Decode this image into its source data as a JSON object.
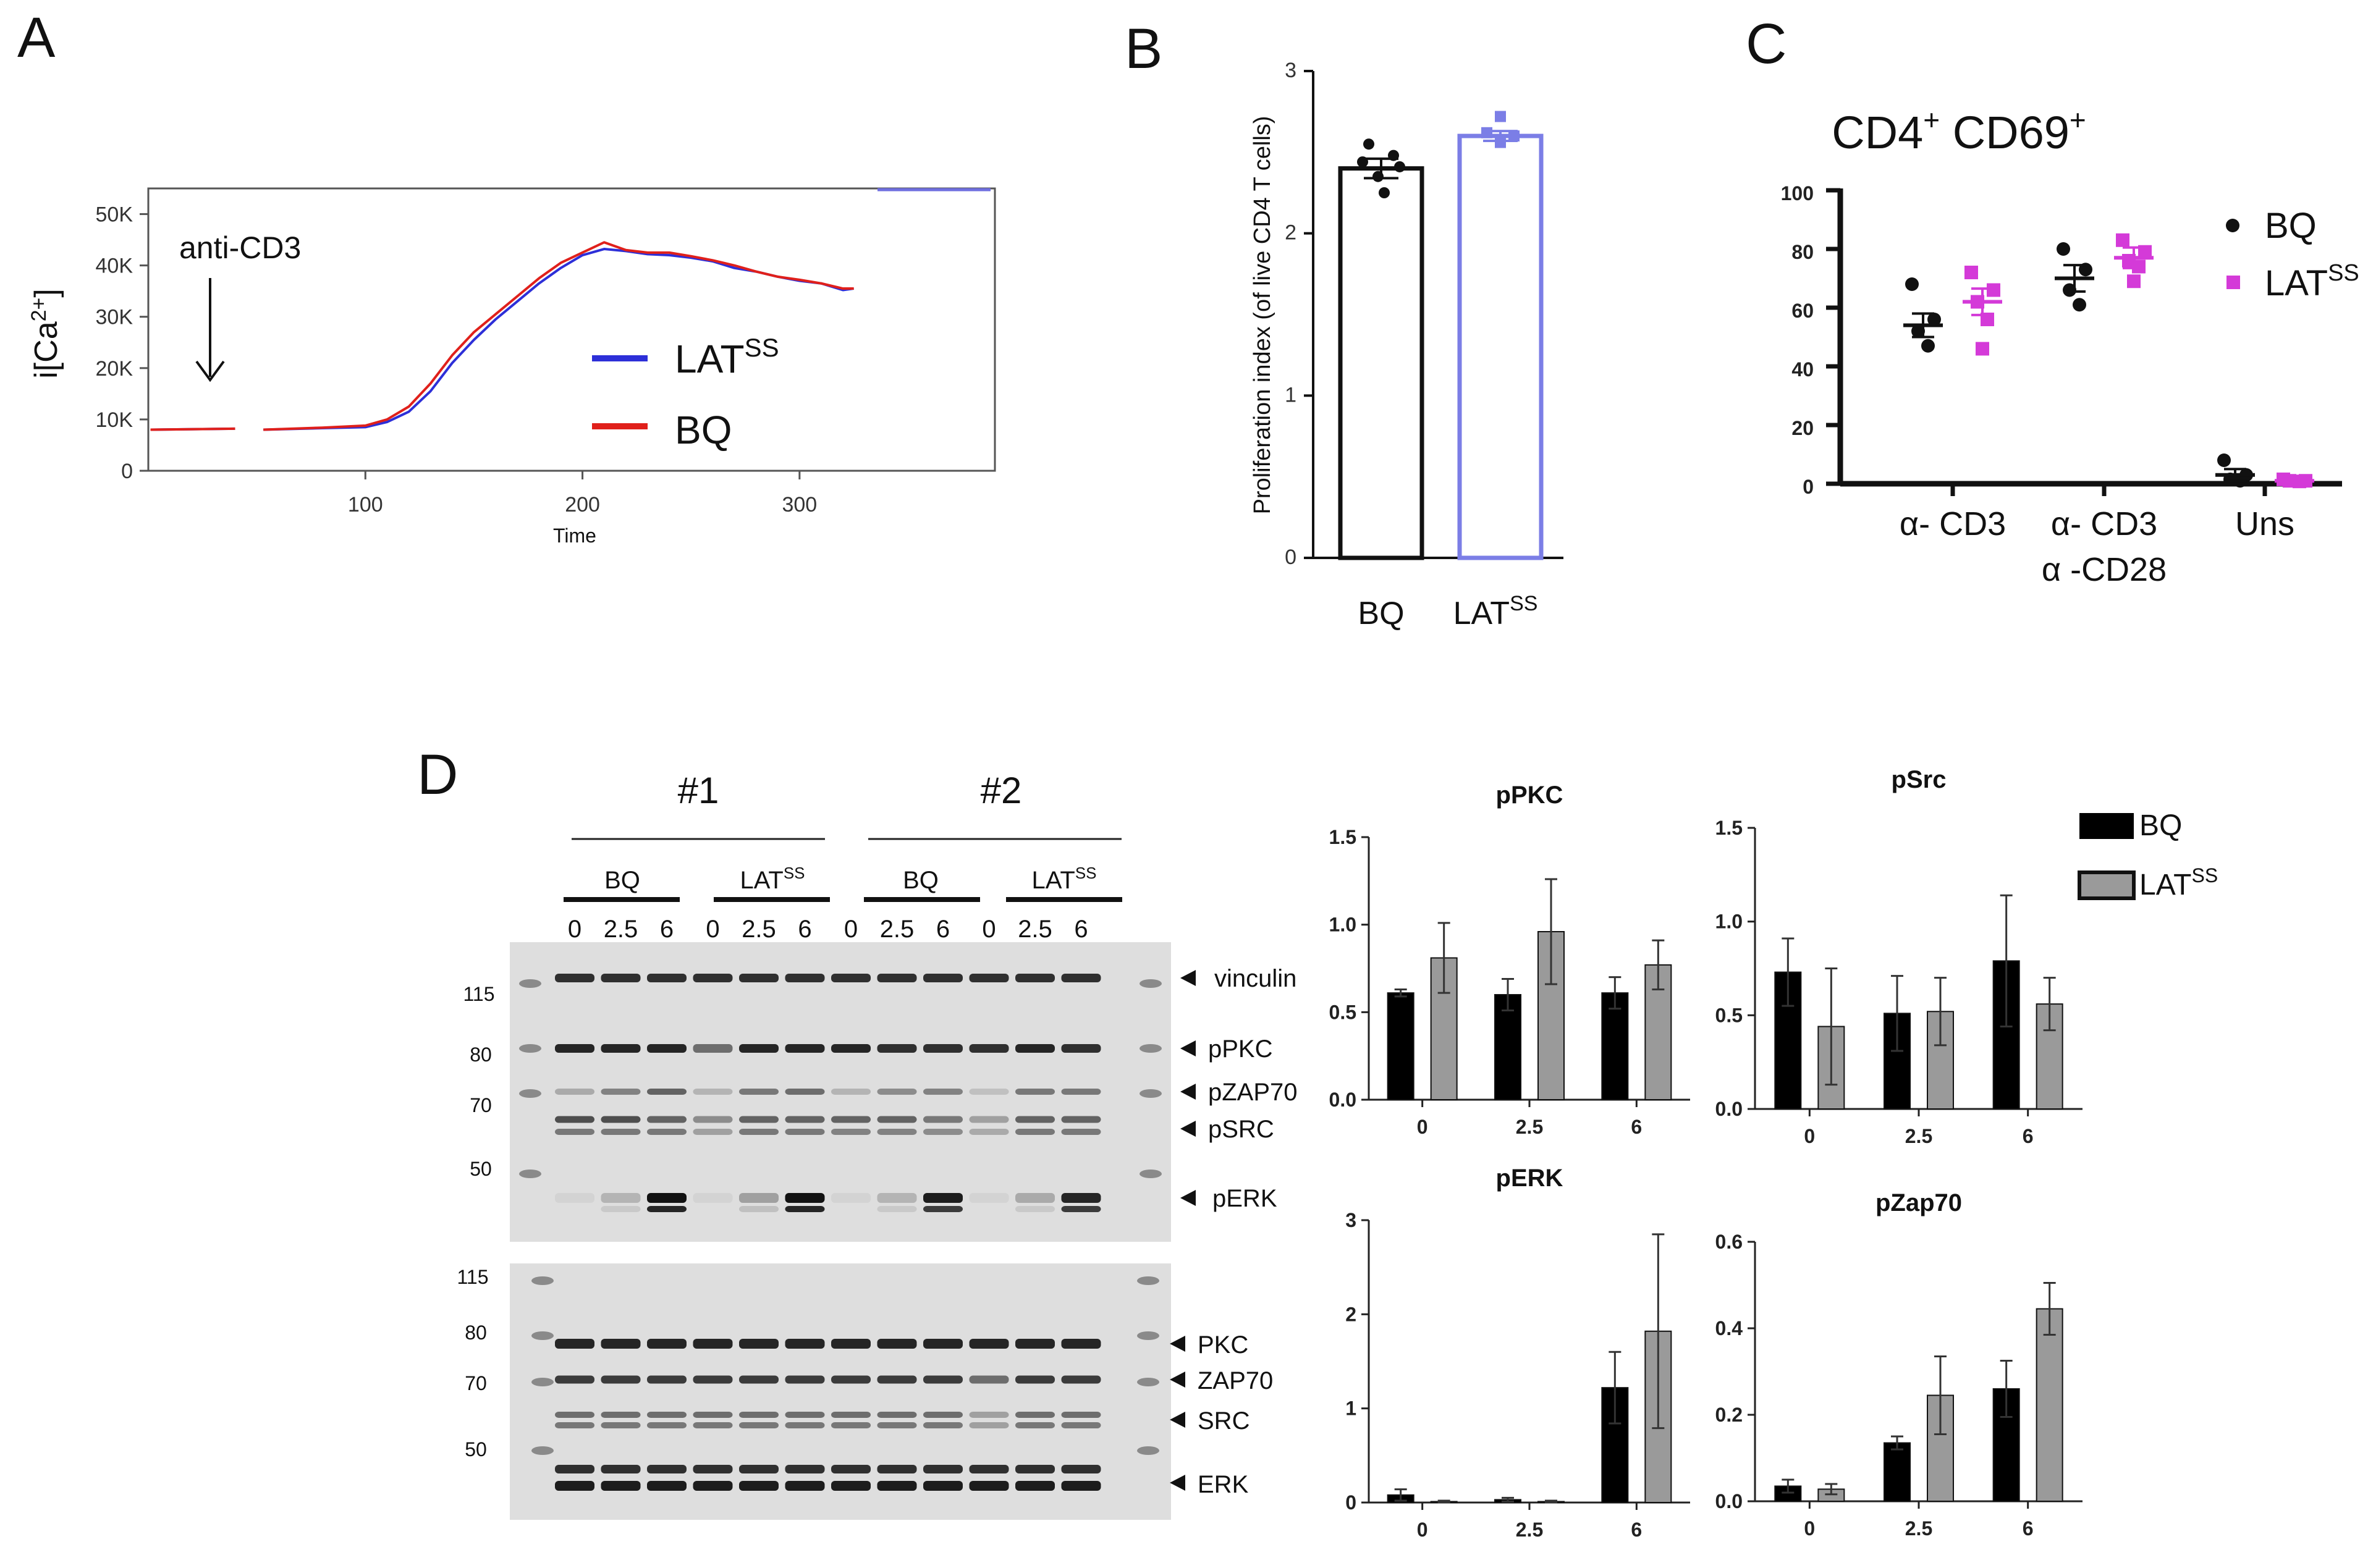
{
  "panels": {
    "a": "A",
    "b": "B",
    "c": "C",
    "d": "D"
  },
  "colors": {
    "bq": "#e0201b",
    "lat": "#2d2fd8",
    "lat_b": "#7b7ee6",
    "lat_c": "#d43ad8",
    "black": "#000000",
    "gray": "#9a9a9a"
  },
  "chart_data": [
    {
      "id": "A",
      "type": "line",
      "title": "",
      "xlabel": "Time",
      "ylabel": "i[Ca2+]",
      "ylabel_base": "i[Ca",
      "ylabel_sup": "2+",
      "ylabel_end": "]",
      "xlim": [
        0,
        390
      ],
      "ylim": [
        0,
        55000
      ],
      "xticks": [
        {
          "v": 100,
          "label": "100"
        },
        {
          "v": 200,
          "label": "200"
        },
        {
          "v": 300,
          "label": "300"
        }
      ],
      "yticks": [
        {
          "v": 0,
          "label": "0"
        },
        {
          "v": 10000,
          "label": "10K"
        },
        {
          "v": 20000,
          "label": "20K"
        },
        {
          "v": 30000,
          "label": "30K"
        },
        {
          "v": 40000,
          "label": "40K"
        },
        {
          "v": 50000,
          "label": "50K"
        }
      ],
      "annotation": {
        "text": "anti-CD3",
        "x": 27
      },
      "legend": [
        {
          "name": "LAT",
          "sup": "SS",
          "color": "#2d2fd8"
        },
        {
          "name": "BQ",
          "sup": "",
          "color": "#e0201b"
        }
      ],
      "series": [
        {
          "name": "LATSS",
          "color": "#2d2fd8",
          "x": [
            1,
            40,
            53,
            80,
            100,
            110,
            120,
            130,
            140,
            150,
            160,
            170,
            180,
            190,
            200,
            210,
            220,
            230,
            240,
            250,
            260,
            270,
            280,
            290,
            300,
            310,
            320,
            325
          ],
          "y": [
            8000,
            8200,
            8000,
            8300,
            8500,
            9500,
            11500,
            15500,
            21000,
            25500,
            29500,
            33000,
            36500,
            39500,
            42000,
            43200,
            42800,
            42200,
            42000,
            41500,
            40800,
            39500,
            38800,
            37800,
            37000,
            36500,
            35200,
            35500
          ]
        },
        {
          "name": "BQ",
          "color": "#e0201b",
          "x": [
            1,
            40,
            53,
            80,
            100,
            110,
            120,
            130,
            140,
            150,
            160,
            170,
            180,
            190,
            200,
            210,
            220,
            230,
            240,
            250,
            260,
            270,
            280,
            290,
            300,
            310,
            320,
            325
          ],
          "y": [
            8000,
            8200,
            8000,
            8400,
            8800,
            10000,
            12500,
            17000,
            22500,
            27000,
            30500,
            34000,
            37500,
            40500,
            42500,
            44500,
            43000,
            42500,
            42500,
            41800,
            41000,
            40000,
            38800,
            37800,
            37200,
            36500,
            35500,
            35500
          ]
        }
      ]
    },
    {
      "id": "B",
      "type": "bar",
      "title": "",
      "ylabel": "Proliferation index (of live CD4 T cells)",
      "ylim": [
        0,
        3
      ],
      "yticks": [
        {
          "v": 0,
          "label": "0"
        },
        {
          "v": 1,
          "label": "1"
        },
        {
          "v": 2,
          "label": "2"
        },
        {
          "v": 3,
          "label": "3"
        }
      ],
      "categories": [
        {
          "name": "BQ",
          "sup": ""
        },
        {
          "name": "LAT",
          "sup": "SS"
        }
      ],
      "values": [
        2.4,
        2.6
      ],
      "sem": [
        0.06,
        0.03
      ],
      "points": [
        [
          2.55,
          2.48,
          2.44,
          2.41,
          2.35,
          2.25
        ],
        [
          2.72,
          2.62,
          2.6,
          2.56
        ]
      ]
    },
    {
      "id": "C",
      "type": "scatter",
      "title": "CD4",
      "title_sup1": "+",
      "title_mid": " CD69",
      "title_sup2": "+",
      "ylim": [
        0,
        100
      ],
      "yticks": [
        {
          "v": 0,
          "label": "0"
        },
        {
          "v": 20,
          "label": "20"
        },
        {
          "v": 40,
          "label": "40"
        },
        {
          "v": 60,
          "label": "60"
        },
        {
          "v": 80,
          "label": "80"
        },
        {
          "v": 100,
          "label": "100"
        }
      ],
      "groups": [
        {
          "line1": "α- CD3",
          "line2": ""
        },
        {
          "line1": "α- CD3",
          "line2": "α -CD28"
        },
        {
          "line1": "Uns",
          "line2": ""
        }
      ],
      "legend": [
        {
          "name": "BQ",
          "sup": "",
          "color": "#111111",
          "marker": "circle"
        },
        {
          "name": "LAT",
          "sup": "SS",
          "color": "#d43ad8",
          "marker": "square"
        }
      ],
      "series": [
        {
          "name": "BQ",
          "marker": "circle",
          "color": "#111111",
          "means": [
            54,
            70,
            3
          ],
          "sem": [
            4,
            4.5,
            2
          ],
          "points": [
            [
              68,
              56,
              52,
              47
            ],
            [
              80,
              73,
              66,
              61
            ],
            [
              8,
              3,
              1.5,
              1
            ]
          ]
        },
        {
          "name": "LATSS",
          "marker": "square",
          "color": "#d43ad8",
          "means": [
            62,
            77,
            1
          ],
          "sem": [
            4.5,
            3.5,
            0.3
          ],
          "points": [
            [
              72,
              66,
              62,
              56,
              46
            ],
            [
              83,
              79,
              76,
              74,
              69
            ],
            [
              1.5,
              1,
              1,
              0.8
            ]
          ]
        }
      ]
    },
    {
      "id": "D-pPKC",
      "type": "bar",
      "title": "pPKC",
      "categories": [
        "0",
        "2.5",
        "6"
      ],
      "ylim": [
        0,
        1.5
      ],
      "yticks": [
        {
          "v": 0,
          "label": "0.0"
        },
        {
          "v": 0.5,
          "label": "0.5"
        },
        {
          "v": 1.0,
          "label": "1.0"
        },
        {
          "v": 1.5,
          "label": "1.5"
        }
      ],
      "series": [
        {
          "name": "BQ",
          "values": [
            0.61,
            0.6,
            0.61
          ],
          "err": [
            0.02,
            0.09,
            0.09
          ]
        },
        {
          "name": "LATSS",
          "values": [
            0.81,
            0.96,
            0.77
          ],
          "err": [
            0.2,
            0.3,
            0.14
          ]
        }
      ]
    },
    {
      "id": "D-pSrc",
      "type": "bar",
      "title": "pSrc",
      "categories": [
        "0",
        "2.5",
        "6"
      ],
      "ylim": [
        0,
        1.5
      ],
      "yticks": [
        {
          "v": 0,
          "label": "0.0"
        },
        {
          "v": 0.5,
          "label": "0.5"
        },
        {
          "v": 1.0,
          "label": "1.0"
        },
        {
          "v": 1.5,
          "label": "1.5"
        }
      ],
      "series": [
        {
          "name": "BQ",
          "values": [
            0.73,
            0.51,
            0.79
          ],
          "err": [
            0.18,
            0.2,
            0.35
          ]
        },
        {
          "name": "LATSS",
          "values": [
            0.44,
            0.52,
            0.56
          ],
          "err": [
            0.31,
            0.18,
            0.14
          ]
        }
      ]
    },
    {
      "id": "D-pERK",
      "type": "bar",
      "title": "pERK",
      "categories": [
        "0",
        "2.5",
        "6"
      ],
      "ylim": [
        0,
        3
      ],
      "yticks": [
        {
          "v": 0,
          "label": "0"
        },
        {
          "v": 1,
          "label": "1"
        },
        {
          "v": 2,
          "label": "2"
        },
        {
          "v": 3,
          "label": "3"
        }
      ],
      "series": [
        {
          "name": "BQ",
          "values": [
            0.08,
            0.03,
            1.22
          ],
          "err": [
            0.06,
            0.02,
            0.38
          ]
        },
        {
          "name": "LATSS",
          "values": [
            0.01,
            0.01,
            1.82
          ],
          "err": [
            0.01,
            0.01,
            1.03
          ]
        }
      ]
    },
    {
      "id": "D-pZap70",
      "type": "bar",
      "title": "pZap70",
      "categories": [
        "0",
        "2.5",
        "6"
      ],
      "ylim": [
        0,
        0.6
      ],
      "yticks": [
        {
          "v": 0,
          "label": "0.0"
        },
        {
          "v": 0.2,
          "label": "0.2"
        },
        {
          "v": 0.4,
          "label": "0.4"
        },
        {
          "v": 0.6,
          "label": "0.6"
        }
      ],
      "series": [
        {
          "name": "BQ",
          "values": [
            0.035,
            0.135,
            0.26
          ],
          "err": [
            0.015,
            0.015,
            0.065
          ]
        },
        {
          "name": "LATSS",
          "values": [
            0.028,
            0.245,
            0.445
          ],
          "err": [
            0.012,
            0.09,
            0.06
          ]
        }
      ]
    }
  ],
  "legend_d": [
    {
      "name": "BQ",
      "sup": "",
      "color": "#000000"
    },
    {
      "name": "LAT",
      "sup": "SS",
      "color": "#9a9a9a"
    }
  ],
  "blot": {
    "replicates": [
      "#1",
      "#2"
    ],
    "groups": [
      {
        "name": "BQ",
        "sup": ""
      },
      {
        "name": "LAT",
        "sup": "SS"
      },
      {
        "name": "BQ",
        "sup": ""
      },
      {
        "name": "LAT",
        "sup": "SS"
      }
    ],
    "timepoints": [
      "0",
      "2.5",
      "6",
      "0",
      "2.5",
      "6",
      "0",
      "2.5",
      "6",
      "0",
      "2.5",
      "6"
    ],
    "top": {
      "mw": [
        "115",
        "80",
        "70",
        "50"
      ],
      "bands": [
        "vinculin",
        "pPKC",
        "pZAP70",
        "pSRC",
        "pERK"
      ]
    },
    "bottom": {
      "mw": [
        "115",
        "80",
        "70",
        "50"
      ],
      "bands": [
        "PKC",
        "ZAP70",
        "SRC",
        "ERK"
      ]
    }
  }
}
